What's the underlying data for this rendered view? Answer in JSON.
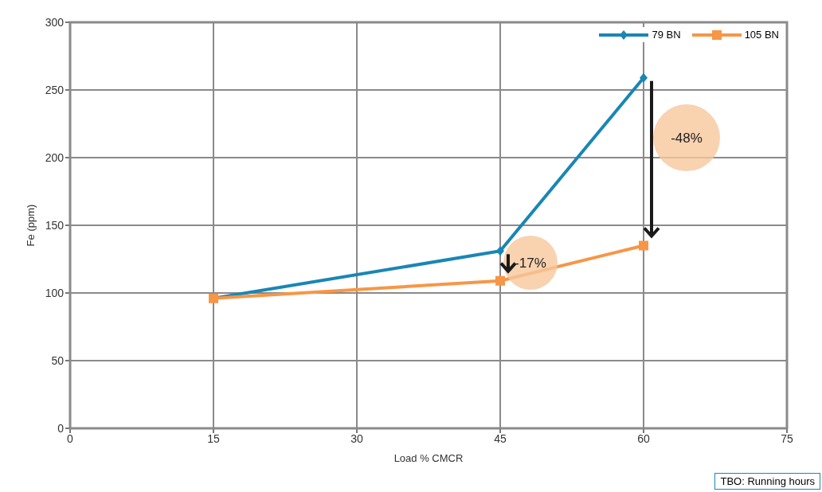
{
  "chart_data": {
    "type": "line",
    "x": [
      15,
      45,
      60
    ],
    "series": [
      {
        "name": "79 BN",
        "color": "#1a86b4",
        "values": [
          96,
          131,
          259
        ],
        "marker": "diamond"
      },
      {
        "name": "105 BN",
        "color": "#f79646",
        "values": [
          96,
          109,
          135
        ],
        "marker": "square"
      }
    ],
    "xlabel": "Load % CMCR",
    "ylabel": "Fe (ppm)",
    "xlim": [
      0,
      75
    ],
    "xticks": [
      0,
      15,
      30,
      45,
      60,
      75
    ],
    "ylim": [
      0,
      300
    ],
    "yticks": [
      0,
      50,
      100,
      150,
      200,
      250,
      300
    ],
    "grid": true,
    "legend": "top right",
    "line_style": "solid",
    "annotations": [
      "-17%",
      "-48%",
      "TBO: Running hours"
    ]
  }
}
